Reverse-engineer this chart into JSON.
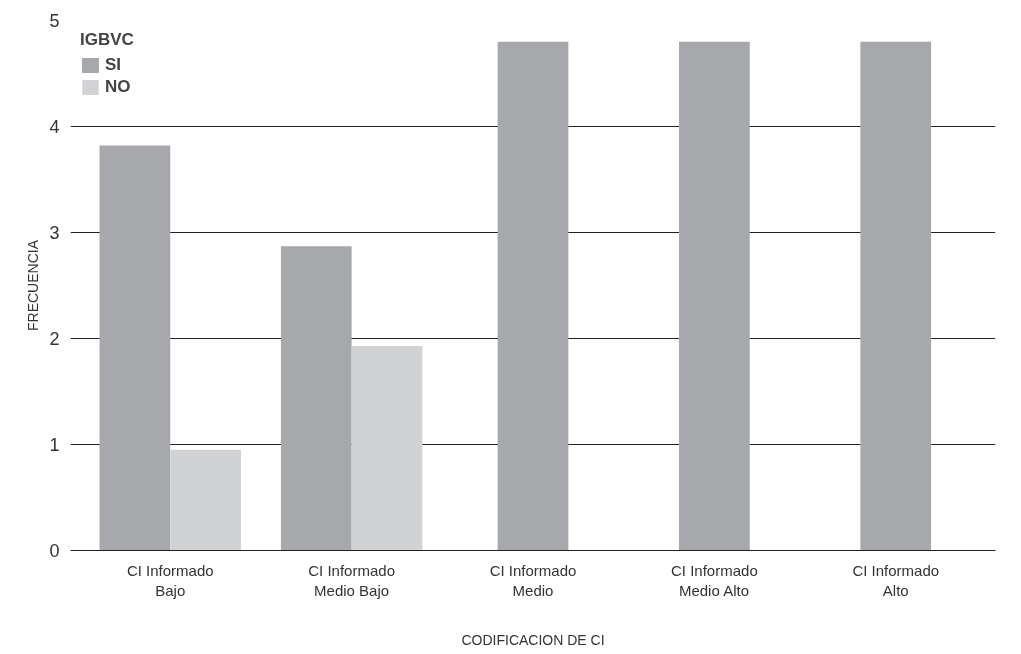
{
  "chart_data": {
    "type": "bar",
    "xlabel": "CODIFICACION DE CI",
    "ylabel": "FRECUENCIA",
    "legend_title": "IGBVC",
    "categories": [
      "CI Informado\nBajo",
      "CI Informado\nMedio Bajo",
      "CI Informado\nMedio",
      "CI Informado\nMedio Alto",
      "CI Informado\nAlto"
    ],
    "series": [
      {
        "name": "SI",
        "color": "#a7a8ab",
        "values": [
          3.82,
          2.87,
          4.8,
          4.8,
          4.8
        ]
      },
      {
        "name": "NO",
        "color": "#d1d2d4",
        "values": [
          0.95,
          1.93,
          null,
          null,
          null
        ]
      }
    ],
    "ylim": [
      0,
      5
    ],
    "yticks": [
      0,
      1,
      2,
      3,
      4,
      5
    ],
    "grid": "y",
    "legend": "top left"
  }
}
